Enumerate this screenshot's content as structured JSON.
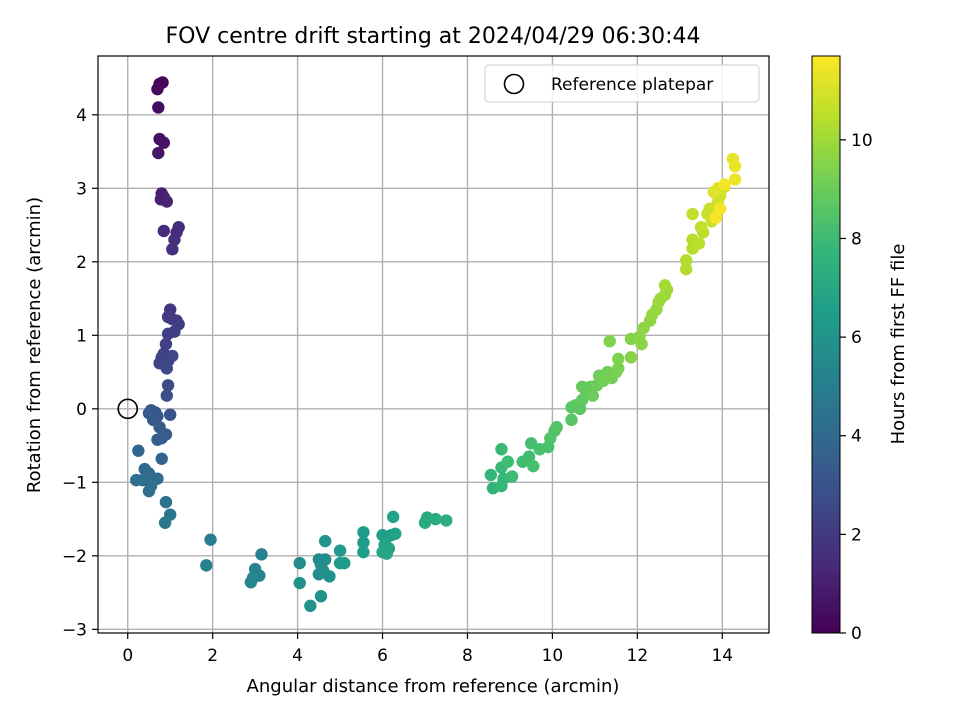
{
  "chart_data": {
    "type": "scatter",
    "title": "FOV centre drift starting at 2024/04/29 06:30:44",
    "xlabel": "Angular distance from reference (arcmin)",
    "ylabel": "Rotation from reference (arcmin)",
    "xlim": [
      -0.7,
      15.1
    ],
    "ylim": [
      -3.05,
      4.8
    ],
    "xticks": [
      0,
      2,
      4,
      6,
      8,
      10,
      12,
      14
    ],
    "yticks": [
      -3,
      -2,
      -1,
      0,
      1,
      2,
      3,
      4
    ],
    "grid": true,
    "legend": {
      "placement": "top-right",
      "entries": [
        "Reference platepar"
      ]
    },
    "reference_point": {
      "x": 0,
      "y": 0
    },
    "colorbar": {
      "label": "Hours from first FF file",
      "range": [
        0,
        11.7
      ],
      "ticks": [
        0,
        2,
        4,
        6,
        8,
        10
      ],
      "colormap": "viridis",
      "colors": [
        "#440154",
        "#482878",
        "#3e4989",
        "#31688e",
        "#26828e",
        "#1f9e89",
        "#35b779",
        "#6ece58",
        "#b5de2b",
        "#fde725"
      ]
    },
    "points": [
      {
        "x": 0.75,
        "y": 4.42,
        "c": 0.1
      },
      {
        "x": 0.82,
        "y": 4.44,
        "c": 0.2
      },
      {
        "x": 0.7,
        "y": 4.35,
        "c": 0.3
      },
      {
        "x": 0.72,
        "y": 4.1,
        "c": 0.4
      },
      {
        "x": 0.75,
        "y": 3.67,
        "c": 0.5
      },
      {
        "x": 0.85,
        "y": 3.62,
        "c": 0.6
      },
      {
        "x": 0.72,
        "y": 3.48,
        "c": 0.7
      },
      {
        "x": 0.8,
        "y": 2.93,
        "c": 1.0
      },
      {
        "x": 0.85,
        "y": 2.88,
        "c": 1.1
      },
      {
        "x": 0.78,
        "y": 2.85,
        "c": 1.1
      },
      {
        "x": 0.92,
        "y": 2.82,
        "c": 1.2
      },
      {
        "x": 0.85,
        "y": 2.42,
        "c": 1.4
      },
      {
        "x": 1.2,
        "y": 2.47,
        "c": 1.5
      },
      {
        "x": 1.15,
        "y": 2.4,
        "c": 1.5
      },
      {
        "x": 1.1,
        "y": 2.3,
        "c": 1.6
      },
      {
        "x": 1.05,
        "y": 2.17,
        "c": 1.7
      },
      {
        "x": 1.0,
        "y": 1.35,
        "c": 1.9
      },
      {
        "x": 0.95,
        "y": 1.25,
        "c": 2.0
      },
      {
        "x": 1.05,
        "y": 1.22,
        "c": 2.0
      },
      {
        "x": 1.15,
        "y": 1.2,
        "c": 2.1
      },
      {
        "x": 1.2,
        "y": 1.15,
        "c": 2.1
      },
      {
        "x": 1.1,
        "y": 1.05,
        "c": 2.2
      },
      {
        "x": 0.95,
        "y": 1.02,
        "c": 2.2
      },
      {
        "x": 0.9,
        "y": 0.88,
        "c": 2.3
      },
      {
        "x": 0.85,
        "y": 0.75,
        "c": 2.3
      },
      {
        "x": 0.8,
        "y": 0.7,
        "c": 2.4
      },
      {
        "x": 0.75,
        "y": 0.62,
        "c": 2.4
      },
      {
        "x": 1.05,
        "y": 0.72,
        "c": 2.5
      },
      {
        "x": 0.95,
        "y": 0.65,
        "c": 2.5
      },
      {
        "x": 0.92,
        "y": 0.55,
        "c": 2.6
      },
      {
        "x": 0.95,
        "y": 0.32,
        "c": 2.7
      },
      {
        "x": 0.92,
        "y": 0.18,
        "c": 2.8
      },
      {
        "x": 1.0,
        "y": -0.08,
        "c": 3.0
      },
      {
        "x": 0.55,
        "y": -0.02,
        "c": 3.1
      },
      {
        "x": 0.65,
        "y": -0.05,
        "c": 3.1
      },
      {
        "x": 0.7,
        "y": -0.1,
        "c": 3.2
      },
      {
        "x": 0.6,
        "y": -0.15,
        "c": 3.2
      },
      {
        "x": 0.5,
        "y": -0.06,
        "c": 3.3
      },
      {
        "x": 0.75,
        "y": -0.25,
        "c": 3.4
      },
      {
        "x": 0.9,
        "y": -0.35,
        "c": 3.4
      },
      {
        "x": 0.8,
        "y": -0.4,
        "c": 3.5
      },
      {
        "x": 0.7,
        "y": -0.42,
        "c": 3.5
      },
      {
        "x": 0.8,
        "y": -0.68,
        "c": 3.7
      },
      {
        "x": 0.25,
        "y": -0.57,
        "c": 3.8
      },
      {
        "x": 0.4,
        "y": -0.82,
        "c": 3.9
      },
      {
        "x": 0.5,
        "y": -0.88,
        "c": 4.0
      },
      {
        "x": 0.6,
        "y": -0.95,
        "c": 4.1
      },
      {
        "x": 0.7,
        "y": -0.95,
        "c": 4.1
      },
      {
        "x": 0.2,
        "y": -0.97,
        "c": 4.2
      },
      {
        "x": 0.35,
        "y": -0.97,
        "c": 4.2
      },
      {
        "x": 0.55,
        "y": -1.05,
        "c": 4.3
      },
      {
        "x": 0.5,
        "y": -1.12,
        "c": 4.3
      },
      {
        "x": 0.9,
        "y": -1.27,
        "c": 4.5
      },
      {
        "x": 1.0,
        "y": -1.44,
        "c": 4.6
      },
      {
        "x": 0.88,
        "y": -1.55,
        "c": 4.7
      },
      {
        "x": 1.95,
        "y": -1.78,
        "c": 5.0
      },
      {
        "x": 1.85,
        "y": -2.13,
        "c": 5.1
      },
      {
        "x": 3.15,
        "y": -1.98,
        "c": 5.2
      },
      {
        "x": 3.0,
        "y": -2.18,
        "c": 5.3
      },
      {
        "x": 3.1,
        "y": -2.27,
        "c": 5.3
      },
      {
        "x": 2.95,
        "y": -2.3,
        "c": 5.4
      },
      {
        "x": 2.9,
        "y": -2.36,
        "c": 5.4
      },
      {
        "x": 4.05,
        "y": -2.1,
        "c": 5.6
      },
      {
        "x": 4.5,
        "y": -2.05,
        "c": 5.6
      },
      {
        "x": 4.65,
        "y": -2.05,
        "c": 5.7
      },
      {
        "x": 4.55,
        "y": -2.12,
        "c": 5.7
      },
      {
        "x": 4.6,
        "y": -2.2,
        "c": 5.8
      },
      {
        "x": 4.5,
        "y": -2.25,
        "c": 5.8
      },
      {
        "x": 4.75,
        "y": -2.28,
        "c": 5.9
      },
      {
        "x": 4.05,
        "y": -2.37,
        "c": 5.9
      },
      {
        "x": 4.3,
        "y": -2.68,
        "c": 6.0
      },
      {
        "x": 4.55,
        "y": -2.55,
        "c": 6.0
      },
      {
        "x": 4.65,
        "y": -1.8,
        "c": 6.1
      },
      {
        "x": 5.0,
        "y": -1.93,
        "c": 6.2
      },
      {
        "x": 5.1,
        "y": -2.1,
        "c": 6.2
      },
      {
        "x": 5.0,
        "y": -2.1,
        "c": 6.3
      },
      {
        "x": 5.55,
        "y": -1.68,
        "c": 6.4
      },
      {
        "x": 5.55,
        "y": -1.82,
        "c": 6.4
      },
      {
        "x": 5.55,
        "y": -1.95,
        "c": 6.5
      },
      {
        "x": 6.0,
        "y": -1.72,
        "c": 6.5
      },
      {
        "x": 6.1,
        "y": -1.75,
        "c": 6.6
      },
      {
        "x": 6.2,
        "y": -1.72,
        "c": 6.6
      },
      {
        "x": 6.3,
        "y": -1.7,
        "c": 6.7
      },
      {
        "x": 6.25,
        "y": -1.47,
        "c": 6.7
      },
      {
        "x": 6.05,
        "y": -1.85,
        "c": 6.8
      },
      {
        "x": 6.15,
        "y": -1.9,
        "c": 6.8
      },
      {
        "x": 6.0,
        "y": -1.95,
        "c": 6.9
      },
      {
        "x": 6.1,
        "y": -1.97,
        "c": 6.9
      },
      {
        "x": 7.0,
        "y": -1.55,
        "c": 7.1
      },
      {
        "x": 7.05,
        "y": -1.48,
        "c": 7.1
      },
      {
        "x": 7.25,
        "y": -1.5,
        "c": 7.2
      },
      {
        "x": 7.5,
        "y": -1.52,
        "c": 7.3
      },
      {
        "x": 8.55,
        "y": -0.9,
        "c": 7.7
      },
      {
        "x": 8.6,
        "y": -1.08,
        "c": 7.7
      },
      {
        "x": 8.8,
        "y": -1.05,
        "c": 7.8
      },
      {
        "x": 8.85,
        "y": -0.95,
        "c": 7.8
      },
      {
        "x": 8.8,
        "y": -0.55,
        "c": 7.9
      },
      {
        "x": 8.8,
        "y": -0.8,
        "c": 7.9
      },
      {
        "x": 8.95,
        "y": -0.72,
        "c": 8.0
      },
      {
        "x": 9.05,
        "y": -0.92,
        "c": 8.0
      },
      {
        "x": 9.3,
        "y": -0.72,
        "c": 8.1
      },
      {
        "x": 9.45,
        "y": -0.65,
        "c": 8.1
      },
      {
        "x": 9.55,
        "y": -0.78,
        "c": 8.2
      },
      {
        "x": 9.5,
        "y": -0.47,
        "c": 8.2
      },
      {
        "x": 9.7,
        "y": -0.55,
        "c": 8.3
      },
      {
        "x": 9.9,
        "y": -0.52,
        "c": 8.3
      },
      {
        "x": 9.95,
        "y": -0.4,
        "c": 8.4
      },
      {
        "x": 10.05,
        "y": -0.3,
        "c": 8.4
      },
      {
        "x": 10.1,
        "y": -0.25,
        "c": 8.5
      },
      {
        "x": 10.45,
        "y": -0.15,
        "c": 8.6
      },
      {
        "x": 10.45,
        "y": 0.02,
        "c": 8.6
      },
      {
        "x": 10.55,
        "y": 0.05,
        "c": 8.7
      },
      {
        "x": 10.65,
        "y": 0.0,
        "c": 8.7
      },
      {
        "x": 10.7,
        "y": 0.12,
        "c": 8.8
      },
      {
        "x": 10.8,
        "y": 0.2,
        "c": 8.8
      },
      {
        "x": 10.7,
        "y": 0.3,
        "c": 8.9
      },
      {
        "x": 10.9,
        "y": 0.3,
        "c": 8.9
      },
      {
        "x": 10.95,
        "y": 0.18,
        "c": 9.0
      },
      {
        "x": 11.05,
        "y": 0.32,
        "c": 9.0
      },
      {
        "x": 11.1,
        "y": 0.45,
        "c": 9.1
      },
      {
        "x": 11.3,
        "y": 0.5,
        "c": 9.1
      },
      {
        "x": 11.2,
        "y": 0.38,
        "c": 9.2
      },
      {
        "x": 11.4,
        "y": 0.42,
        "c": 9.2
      },
      {
        "x": 11.5,
        "y": 0.5,
        "c": 9.3
      },
      {
        "x": 11.55,
        "y": 0.55,
        "c": 9.3
      },
      {
        "x": 11.55,
        "y": 0.68,
        "c": 9.4
      },
      {
        "x": 11.35,
        "y": 0.92,
        "c": 9.4
      },
      {
        "x": 11.85,
        "y": 0.7,
        "c": 9.5
      },
      {
        "x": 11.85,
        "y": 0.95,
        "c": 9.5
      },
      {
        "x": 12.05,
        "y": 0.98,
        "c": 9.6
      },
      {
        "x": 12.1,
        "y": 0.88,
        "c": 9.6
      },
      {
        "x": 12.15,
        "y": 1.1,
        "c": 9.7
      },
      {
        "x": 12.3,
        "y": 1.2,
        "c": 9.7
      },
      {
        "x": 12.35,
        "y": 1.28,
        "c": 9.8
      },
      {
        "x": 12.45,
        "y": 1.35,
        "c": 9.8
      },
      {
        "x": 12.5,
        "y": 1.45,
        "c": 9.9
      },
      {
        "x": 12.55,
        "y": 1.5,
        "c": 9.9
      },
      {
        "x": 12.65,
        "y": 1.55,
        "c": 10.0
      },
      {
        "x": 12.7,
        "y": 1.62,
        "c": 10.0
      },
      {
        "x": 12.65,
        "y": 1.68,
        "c": 10.1
      },
      {
        "x": 13.15,
        "y": 1.9,
        "c": 10.3
      },
      {
        "x": 13.15,
        "y": 2.02,
        "c": 10.3
      },
      {
        "x": 13.3,
        "y": 2.18,
        "c": 10.4
      },
      {
        "x": 13.3,
        "y": 2.3,
        "c": 10.4
      },
      {
        "x": 13.45,
        "y": 2.25,
        "c": 10.5
      },
      {
        "x": 13.55,
        "y": 2.4,
        "c": 10.5
      },
      {
        "x": 13.5,
        "y": 2.47,
        "c": 10.6
      },
      {
        "x": 13.3,
        "y": 2.65,
        "c": 10.6
      },
      {
        "x": 13.65,
        "y": 2.65,
        "c": 10.7
      },
      {
        "x": 13.7,
        "y": 2.72,
        "c": 10.7
      },
      {
        "x": 13.75,
        "y": 2.55,
        "c": 10.8
      },
      {
        "x": 13.85,
        "y": 2.75,
        "c": 10.8
      },
      {
        "x": 13.9,
        "y": 2.82,
        "c": 10.9
      },
      {
        "x": 13.95,
        "y": 2.9,
        "c": 10.9
      },
      {
        "x": 13.9,
        "y": 3.0,
        "c": 11.0
      },
      {
        "x": 14.05,
        "y": 3.02,
        "c": 11.0
      },
      {
        "x": 13.8,
        "y": 2.95,
        "c": 11.1
      },
      {
        "x": 14.25,
        "y": 3.4,
        "c": 11.3
      },
      {
        "x": 14.3,
        "y": 3.3,
        "c": 11.4
      },
      {
        "x": 14.3,
        "y": 3.12,
        "c": 11.4
      },
      {
        "x": 14.05,
        "y": 3.05,
        "c": 11.5
      },
      {
        "x": 13.95,
        "y": 2.72,
        "c": 11.5
      },
      {
        "x": 13.85,
        "y": 2.6,
        "c": 11.6
      }
    ]
  }
}
